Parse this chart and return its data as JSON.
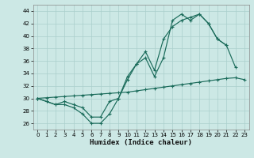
{
  "xlabel": "Humidex (Indice chaleur)",
  "xlim": [
    -0.5,
    23.5
  ],
  "ylim": [
    25.0,
    45.0
  ],
  "yticks": [
    26,
    28,
    30,
    32,
    34,
    36,
    38,
    40,
    42,
    44
  ],
  "xticks": [
    0,
    1,
    2,
    3,
    4,
    5,
    6,
    7,
    8,
    9,
    10,
    11,
    12,
    13,
    14,
    15,
    16,
    17,
    18,
    19,
    20,
    21,
    22,
    23
  ],
  "bg_color": "#cce8e5",
  "grid_color": "#aacfcc",
  "line_color": "#1a6b5a",
  "line1_y": [
    30.0,
    29.5,
    29.0,
    29.0,
    28.5,
    27.5,
    26.0,
    26.0,
    27.5,
    30.0,
    33.5,
    35.5,
    36.5,
    33.5,
    36.5,
    42.5,
    43.5,
    42.5,
    43.5,
    42.0,
    39.5,
    38.5,
    35.0,
    null
  ],
  "line2_y": [
    30.0,
    29.5,
    29.0,
    29.5,
    29.0,
    28.5,
    27.0,
    27.0,
    29.5,
    30.0,
    33.0,
    35.5,
    37.5,
    34.5,
    39.5,
    41.5,
    42.5,
    43.0,
    43.5,
    42.0,
    39.5,
    38.5,
    null,
    null
  ],
  "line3_y": [
    30.0,
    30.1,
    30.2,
    30.3,
    30.4,
    30.5,
    30.6,
    30.7,
    30.8,
    30.9,
    31.0,
    31.2,
    31.4,
    31.6,
    31.8,
    32.0,
    32.2,
    32.4,
    32.6,
    32.8,
    33.0,
    33.2,
    33.3,
    33.0
  ]
}
